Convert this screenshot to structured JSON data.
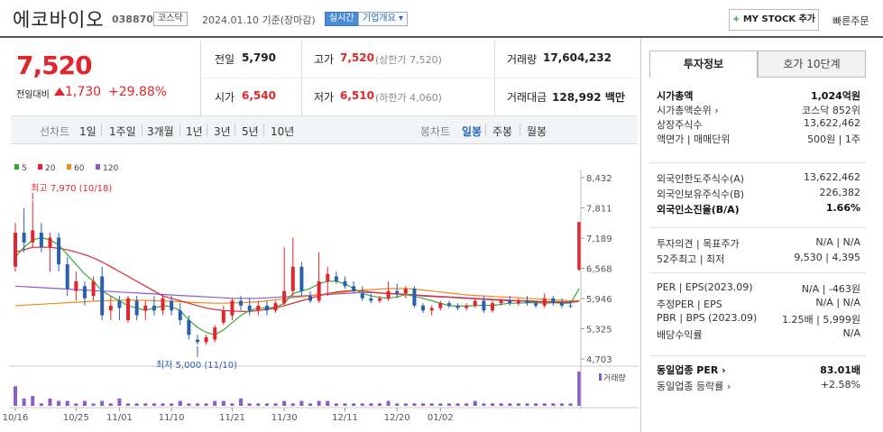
{
  "header": {
    "name": "에코바이오",
    "code": "038870",
    "market": "코스닥",
    "date": "2024.01.10  기준(장마감)",
    "realtime": "실시간",
    "overview": "기업개요 ▾",
    "mystock_plus": "+",
    "mystock": "MY STOCK 추가",
    "quick": "빠른주문"
  },
  "quote": {
    "price": "7,520",
    "change_label": "전일대비",
    "change": "1,730",
    "change_pct": "+29.88%",
    "prev_label": "전일",
    "prev": "5,790",
    "high_label": "고가",
    "high": "7,520",
    "upper_limit": "(상한가 7,520)",
    "volume_label": "거래량",
    "volume": "17,604,232",
    "open_label": "시가",
    "open": "6,540",
    "low_label": "저가",
    "low": "6,510",
    "lower_limit": "(하한가 4,060)",
    "amount_label": "거래대금",
    "amount": "128,992 백만"
  },
  "periods": {
    "line_label": "선차트",
    "line": [
      "1일",
      "1주일",
      "3개월",
      "1년",
      "3년",
      "5년",
      "10년"
    ],
    "candle_label": "봉차트",
    "candle": [
      "일봉",
      "주봉",
      "월봉"
    ],
    "selected": "일봉"
  },
  "chart_data": {
    "type": "candlestick",
    "legend": [
      {
        "name": "5",
        "color": "#3aa63a"
      },
      {
        "name": "20",
        "color": "#e0262c"
      },
      {
        "name": "60",
        "color": "#f08a1c"
      },
      {
        "name": "120",
        "color": "#8a5cc8"
      }
    ],
    "y_ticks": [
      "8,432",
      "7,811",
      "7,189",
      "6,568",
      "5,946",
      "5,325",
      "4,703"
    ],
    "ylim": [
      4703,
      8432
    ],
    "x_ticks": [
      "10/16",
      "10/25",
      "11/01",
      "11/10",
      "11/21",
      "11/30",
      "12/11",
      "12/20",
      "01/02"
    ],
    "high_note": "최고 7,970 (10/18)",
    "low_note": "최저 5,000 (11/10)",
    "volume_label": "거래량",
    "candles": [
      {
        "o": 6600,
        "h": 7500,
        "l": 6500,
        "c": 7300
      },
      {
        "o": 7300,
        "h": 7800,
        "l": 6900,
        "c": 7100
      },
      {
        "o": 7100,
        "h": 7970,
        "l": 7000,
        "c": 7350
      },
      {
        "o": 7300,
        "h": 7500,
        "l": 6900,
        "c": 7000
      },
      {
        "o": 7000,
        "h": 7300,
        "l": 6500,
        "c": 7200
      },
      {
        "o": 7200,
        "h": 7300,
        "l": 6500,
        "c": 6650
      },
      {
        "o": 6650,
        "h": 6800,
        "l": 6000,
        "c": 6150
      },
      {
        "o": 6100,
        "h": 6500,
        "l": 5900,
        "c": 6300
      },
      {
        "o": 6200,
        "h": 6300,
        "l": 5800,
        "c": 5950
      },
      {
        "o": 6000,
        "h": 6400,
        "l": 5900,
        "c": 6300
      },
      {
        "o": 6400,
        "h": 6600,
        "l": 5500,
        "c": 5600
      },
      {
        "o": 5700,
        "h": 6000,
        "l": 5500,
        "c": 5800
      },
      {
        "o": 5900,
        "h": 6000,
        "l": 5500,
        "c": 5750
      },
      {
        "o": 5500,
        "h": 6000,
        "l": 5450,
        "c": 5950
      },
      {
        "o": 5900,
        "h": 6000,
        "l": 5500,
        "c": 5600
      },
      {
        "o": 5700,
        "h": 5900,
        "l": 5500,
        "c": 5800
      },
      {
        "o": 5800,
        "h": 6000,
        "l": 5600,
        "c": 5700
      },
      {
        "o": 5700,
        "h": 6000,
        "l": 5600,
        "c": 5950
      },
      {
        "o": 5900,
        "h": 6000,
        "l": 5600,
        "c": 5700
      },
      {
        "o": 5700,
        "h": 5850,
        "l": 5400,
        "c": 5500
      },
      {
        "o": 5500,
        "h": 5600,
        "l": 5100,
        "c": 5200
      },
      {
        "o": 5100,
        "h": 5200,
        "l": 5000,
        "c": 5050
      },
      {
        "o": 5050,
        "h": 5200,
        "l": 5000,
        "c": 5150
      },
      {
        "o": 5100,
        "h": 5400,
        "l": 5050,
        "c": 5350
      },
      {
        "o": 5450,
        "h": 5800,
        "l": 5400,
        "c": 5700
      },
      {
        "o": 5600,
        "h": 5950,
        "l": 5500,
        "c": 5900
      },
      {
        "o": 5900,
        "h": 6000,
        "l": 5700,
        "c": 5800
      },
      {
        "o": 5800,
        "h": 5950,
        "l": 5600,
        "c": 5700
      },
      {
        "o": 5700,
        "h": 5900,
        "l": 5600,
        "c": 5800
      },
      {
        "o": 5800,
        "h": 5900,
        "l": 5600,
        "c": 5700
      },
      {
        "o": 5700,
        "h": 5900,
        "l": 5650,
        "c": 5850
      },
      {
        "o": 5850,
        "h": 7000,
        "l": 5800,
        "c": 6100
      },
      {
        "o": 6100,
        "h": 7200,
        "l": 6000,
        "c": 6600
      },
      {
        "o": 6600,
        "h": 6700,
        "l": 6000,
        "c": 6100
      },
      {
        "o": 6000,
        "h": 6100,
        "l": 5850,
        "c": 5900
      },
      {
        "o": 5900,
        "h": 6900,
        "l": 5850,
        "c": 6300
      },
      {
        "o": 6300,
        "h": 6600,
        "l": 6000,
        "c": 6450
      },
      {
        "o": 6400,
        "h": 6500,
        "l": 6250,
        "c": 6300
      },
      {
        "o": 6300,
        "h": 6400,
        "l": 6150,
        "c": 6200
      },
      {
        "o": 6200,
        "h": 6300,
        "l": 6050,
        "c": 6100
      },
      {
        "o": 6050,
        "h": 6200,
        "l": 5900,
        "c": 5950
      },
      {
        "o": 5950,
        "h": 6050,
        "l": 5850,
        "c": 5900
      },
      {
        "o": 5900,
        "h": 6000,
        "l": 5850,
        "c": 5950
      },
      {
        "o": 5950,
        "h": 6300,
        "l": 5900,
        "c": 6100
      },
      {
        "o": 6100,
        "h": 6250,
        "l": 5950,
        "c": 6050
      },
      {
        "o": 6050,
        "h": 6200,
        "l": 5950,
        "c": 6150
      },
      {
        "o": 6150,
        "h": 6200,
        "l": 5750,
        "c": 5800
      },
      {
        "o": 5800,
        "h": 5850,
        "l": 5650,
        "c": 5700
      },
      {
        "o": 5700,
        "h": 5800,
        "l": 5600,
        "c": 5750
      },
      {
        "o": 5750,
        "h": 5900,
        "l": 5700,
        "c": 5850
      },
      {
        "o": 5850,
        "h": 5900,
        "l": 5750,
        "c": 5800
      },
      {
        "o": 5800,
        "h": 5850,
        "l": 5700,
        "c": 5750
      },
      {
        "o": 5750,
        "h": 5850,
        "l": 5700,
        "c": 5800
      },
      {
        "o": 5800,
        "h": 5950,
        "l": 5750,
        "c": 5900
      },
      {
        "o": 5900,
        "h": 6000,
        "l": 5650,
        "c": 5700
      },
      {
        "o": 5700,
        "h": 5900,
        "l": 5650,
        "c": 5850
      },
      {
        "o": 5850,
        "h": 5950,
        "l": 5800,
        "c": 5900
      },
      {
        "o": 5900,
        "h": 6000,
        "l": 5800,
        "c": 5850
      },
      {
        "o": 5850,
        "h": 5950,
        "l": 5800,
        "c": 5900
      },
      {
        "o": 5900,
        "h": 6000,
        "l": 5800,
        "c": 5850
      },
      {
        "o": 5850,
        "h": 5900,
        "l": 5750,
        "c": 5800
      },
      {
        "o": 5800,
        "h": 6050,
        "l": 5750,
        "c": 5950
      },
      {
        "o": 5950,
        "h": 6000,
        "l": 5800,
        "c": 5850
      },
      {
        "o": 5850,
        "h": 5950,
        "l": 5750,
        "c": 5800
      },
      {
        "o": 5800,
        "h": 5900,
        "l": 5750,
        "c": 5790
      },
      {
        "o": 6540,
        "h": 7520,
        "l": 6510,
        "c": 7520
      }
    ],
    "volumes": [
      8,
      3,
      4,
      1,
      3,
      2,
      2,
      1,
      2,
      1,
      2,
      1,
      3,
      1,
      1,
      1,
      1,
      1,
      1,
      2,
      1,
      1,
      1,
      2,
      2,
      1,
      3,
      1,
      1,
      1,
      1,
      2,
      1,
      2,
      1,
      2,
      2,
      1,
      1,
      1,
      1,
      1,
      1,
      2,
      1,
      1,
      1,
      1,
      1,
      1,
      1,
      1,
      1,
      2,
      1,
      1,
      1,
      1,
      1,
      1,
      1,
      1,
      1,
      1,
      1,
      14
    ],
    "ma5": [
      6800,
      7000,
      7150,
      7200,
      7150,
      7050,
      6850,
      6650,
      6450,
      6300,
      6100,
      6000,
      5900,
      5800,
      5750,
      5700,
      5750,
      5800,
      5780,
      5700,
      5500,
      5350,
      5250,
      5200,
      5300,
      5450,
      5600,
      5700,
      5750,
      5750,
      5770,
      5850,
      6050,
      6100,
      6150,
      6250,
      6300,
      6300,
      6250,
      6150,
      6050,
      6000,
      5970,
      5950,
      5980,
      6030,
      5990,
      5950,
      5900,
      5850,
      5800,
      5790,
      5790,
      5800,
      5810,
      5800,
      5830,
      5850,
      5850,
      5860,
      5860,
      5850,
      5860,
      5850,
      5850,
      6150
    ],
    "ma20": [
      6900,
      6950,
      7000,
      7000,
      7000,
      6980,
      6950,
      6900,
      6850,
      6780,
      6700,
      6600,
      6500,
      6400,
      6300,
      6200,
      6100,
      6000,
      5950,
      5900,
      5850,
      5800,
      5750,
      5720,
      5700,
      5690,
      5680,
      5680,
      5700,
      5720,
      5750,
      5800,
      5850,
      5900,
      5950,
      6000,
      6050,
      6080,
      6100,
      6110,
      6100,
      6080,
      6060,
      6050,
      6040,
      6030,
      6020,
      6000,
      5990,
      5980,
      5970,
      5960,
      5950,
      5940,
      5930,
      5920,
      5910,
      5900,
      5900,
      5900,
      5890,
      5880,
      5880,
      5870,
      5860,
      5900
    ],
    "ma60": [
      5800,
      5810,
      5820,
      5830,
      5840,
      5850,
      5860,
      5870,
      5880,
      5890,
      5900,
      5905,
      5910,
      5910,
      5910,
      5905,
      5900,
      5895,
      5890,
      5880,
      5870,
      5860,
      5855,
      5850,
      5850,
      5855,
      5860,
      5870,
      5880,
      5900,
      5920,
      5940,
      5960,
      5980,
      6000,
      6020,
      6040,
      6060,
      6080,
      6100,
      6120,
      6130,
      6140,
      6150,
      6150,
      6150,
      6140,
      6120,
      6100,
      6080,
      6060,
      6040,
      6020,
      6010,
      6000,
      5990,
      5980,
      5970,
      5960,
      5950,
      5940,
      5930,
      5920,
      5910,
      5900,
      5900
    ],
    "ma120": [
      6200,
      6190,
      6180,
      6170,
      6160,
      6150,
      6140,
      6130,
      6120,
      6110,
      6100,
      6090,
      6080,
      6070,
      6060,
      6050,
      6040,
      6030,
      6020,
      6010,
      6000,
      5990,
      5980,
      5970,
      5960,
      5950,
      5950,
      5950,
      5950,
      5960,
      5970,
      5980,
      5990,
      6000,
      6010,
      6020,
      6030,
      6040,
      6050,
      6060,
      6070,
      6070,
      6060,
      6050,
      6040,
      6030,
      6020,
      6010,
      6000,
      5990,
      5980,
      5970,
      5960,
      5950,
      5940,
      5930,
      5920,
      5910,
      5900,
      5890,
      5880,
      5880,
      5880,
      5880,
      5880,
      5890
    ]
  },
  "panel": {
    "tab_invest": "투자정보",
    "tab_hoga": "호가 10단계",
    "rows1": [
      {
        "label": "시가총액",
        "value": "1,024억원",
        "bold": true
      },
      {
        "label": "시가총액순위 ›",
        "value": "코스닥 852위"
      },
      {
        "label": "상장주식수",
        "value": "13,622,462"
      },
      {
        "label": "액면가 | 매매단위",
        "value": "500원 | 1주"
      }
    ],
    "rows2": [
      {
        "label": "외국인한도주식수(A)",
        "value": "13,622,462"
      },
      {
        "label": "외국인보유주식수(B)",
        "value": "226,382"
      },
      {
        "label": "외국인소진율(B/A)",
        "value": "1.66%",
        "bold": true
      }
    ],
    "rows3": [
      {
        "label": "투자의견 | 목표주가",
        "value": "N/A | N/A"
      },
      {
        "label": "52주최고 | 최저",
        "value": "9,530 | 4,395"
      }
    ],
    "rows4": [
      {
        "label": "PER | EPS(2023.09)",
        "value": "N/A | -463원"
      },
      {
        "label": "추정PER | EPS",
        "value": "N/A | N/A"
      },
      {
        "label": "PBR | BPS (2023.09)",
        "value": "1.25배 | 5,999원"
      },
      {
        "label": "배당수익률",
        "value": "N/A"
      }
    ],
    "rows5": [
      {
        "label": "동일업종 PER ›",
        "value": "83.01배",
        "bold": true
      },
      {
        "label": "동일업종 등락률 ›",
        "value": "+2.58%",
        "red": true
      }
    ]
  }
}
